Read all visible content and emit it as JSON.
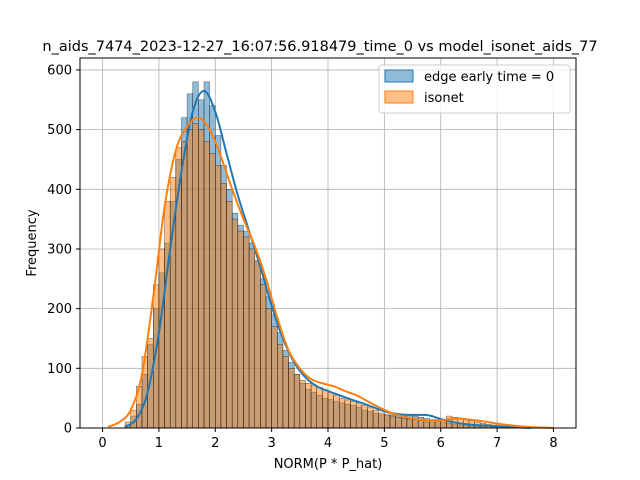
{
  "chart_data": {
    "type": "histogram",
    "title": "n_aids_7474_2023-12-27_16:07:56.918479_time_0 vs model_isonet_aids_77",
    "xlabel": "NORM(P * P_hat)",
    "ylabel": "Frequency",
    "xlim": [
      -0.4,
      8.4
    ],
    "ylim": [
      0,
      620
    ],
    "x_ticks": [
      0,
      1,
      2,
      3,
      4,
      5,
      6,
      7,
      8
    ],
    "y_ticks": [
      0,
      100,
      200,
      300,
      400,
      500,
      600
    ],
    "grid": true,
    "legend_position": "top-right",
    "bin_width": 0.1,
    "bin_start": 0.4,
    "series": [
      {
        "name": "edge early time = 0",
        "color": "#1f77b4",
        "bars": [
          5,
          20,
          40,
          90,
          140,
          200,
          260,
          310,
          380,
          450,
          520,
          560,
          580,
          550,
          580,
          540,
          490,
          440,
          400,
          360,
          340,
          330,
          310,
          280,
          250,
          220,
          190,
          160,
          130,
          110,
          90,
          75,
          65,
          60,
          55,
          50,
          48,
          45,
          42,
          40,
          38,
          35,
          30,
          28,
          25,
          22,
          22,
          22,
          22,
          22,
          22,
          20,
          18,
          16,
          14,
          12,
          10,
          8,
          6,
          5,
          4,
          3,
          2,
          2,
          1,
          1,
          0,
          0,
          0,
          0,
          0,
          0,
          0,
          0,
          0,
          0
        ],
        "kde": [
          [
            0.4,
            2
          ],
          [
            0.6,
            15
          ],
          [
            0.8,
            60
          ],
          [
            1.0,
            160
          ],
          [
            1.2,
            300
          ],
          [
            1.4,
            430
          ],
          [
            1.6,
            530
          ],
          [
            1.8,
            565
          ],
          [
            2.0,
            530
          ],
          [
            2.2,
            460
          ],
          [
            2.4,
            390
          ],
          [
            2.6,
            330
          ],
          [
            2.8,
            270
          ],
          [
            3.0,
            205
          ],
          [
            3.2,
            150
          ],
          [
            3.4,
            110
          ],
          [
            3.6,
            85
          ],
          [
            3.8,
            70
          ],
          [
            4.0,
            62
          ],
          [
            4.2,
            55
          ],
          [
            4.4,
            48
          ],
          [
            4.6,
            42
          ],
          [
            4.8,
            35
          ],
          [
            5.0,
            28
          ],
          [
            5.2,
            24
          ],
          [
            5.4,
            22
          ],
          [
            5.6,
            22
          ],
          [
            5.8,
            21
          ],
          [
            6.0,
            15
          ],
          [
            6.2,
            10
          ],
          [
            6.4,
            7
          ],
          [
            6.6,
            5
          ],
          [
            6.8,
            4
          ],
          [
            7.0,
            3
          ],
          [
            7.2,
            2
          ],
          [
            7.4,
            1
          ],
          [
            7.6,
            0
          ]
        ]
      },
      {
        "name": "isonet",
        "color": "#ff7f0e",
        "bars": [
          10,
          30,
          70,
          120,
          150,
          240,
          300,
          380,
          420,
          470,
          480,
          500,
          510,
          500,
          480,
          460,
          440,
          410,
          380,
          350,
          330,
          320,
          300,
          280,
          240,
          200,
          170,
          140,
          120,
          100,
          90,
          80,
          75,
          72,
          68,
          64,
          60,
          55,
          50,
          47,
          45,
          42,
          38,
          35,
          30,
          25,
          22,
          20,
          18,
          16,
          15,
          14,
          13,
          12,
          12,
          14,
          15,
          20,
          18,
          16,
          14,
          12,
          10,
          8,
          6,
          5,
          4,
          3,
          2,
          2,
          1,
          1,
          0,
          0,
          0,
          0
        ],
        "kde": [
          [
            0.1,
            2
          ],
          [
            0.3,
            10
          ],
          [
            0.5,
            30
          ],
          [
            0.7,
            90
          ],
          [
            0.9,
            220
          ],
          [
            1.1,
            370
          ],
          [
            1.3,
            465
          ],
          [
            1.5,
            505
          ],
          [
            1.7,
            520
          ],
          [
            1.9,
            500
          ],
          [
            2.1,
            455
          ],
          [
            2.3,
            400
          ],
          [
            2.5,
            350
          ],
          [
            2.7,
            305
          ],
          [
            2.9,
            250
          ],
          [
            3.1,
            185
          ],
          [
            3.3,
            130
          ],
          [
            3.5,
            100
          ],
          [
            3.7,
            82
          ],
          [
            3.9,
            75
          ],
          [
            4.1,
            70
          ],
          [
            4.3,
            62
          ],
          [
            4.5,
            55
          ],
          [
            4.7,
            45
          ],
          [
            4.9,
            35
          ],
          [
            5.1,
            26
          ],
          [
            5.3,
            20
          ],
          [
            5.5,
            16
          ],
          [
            5.7,
            13
          ],
          [
            5.9,
            12
          ],
          [
            6.1,
            14
          ],
          [
            6.3,
            16
          ],
          [
            6.5,
            14
          ],
          [
            6.7,
            12
          ],
          [
            6.9,
            9
          ],
          [
            7.1,
            6
          ],
          [
            7.3,
            4
          ],
          [
            7.5,
            2
          ],
          [
            7.7,
            1
          ],
          [
            8.0,
            0
          ]
        ]
      }
    ]
  }
}
